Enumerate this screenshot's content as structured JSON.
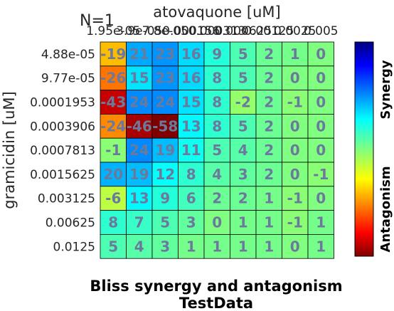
{
  "chart_data": {
    "type": "heatmap",
    "title": "Bliss synergy and antagonism",
    "subtitle": "TestData",
    "corner_label": "N=1",
    "xlabel": "atovaquone [uM]",
    "ylabel": "gramicidin [uM]",
    "x_ticks": [
      "1.95e-05",
      "3.9e-05",
      "7.8e-05",
      "0.000156",
      "0.000313",
      "0.000625",
      "0.00125",
      "0.0025",
      "0.005"
    ],
    "y_ticks": [
      "4.88e-05",
      "9.77e-05",
      "0.0001953",
      "0.0003906",
      "0.0007813",
      "0.0015625",
      "0.003125",
      "0.00625",
      "0.0125"
    ],
    "values": [
      [
        -19,
        21,
        23,
        16,
        9,
        5,
        2,
        1,
        0
      ],
      [
        -26,
        15,
        23,
        16,
        8,
        5,
        2,
        0,
        0
      ],
      [
        -43,
        24,
        24,
        15,
        8,
        -2,
        2,
        -1,
        0
      ],
      [
        -24,
        -46,
        -58,
        13,
        8,
        5,
        2,
        0,
        0
      ],
      [
        -1,
        24,
        19,
        11,
        5,
        4,
        2,
        0,
        0
      ],
      [
        20,
        19,
        12,
        8,
        4,
        3,
        2,
        0,
        -1
      ],
      [
        -6,
        13,
        9,
        6,
        2,
        2,
        1,
        -1,
        0
      ],
      [
        8,
        7,
        5,
        3,
        0,
        1,
        1,
        -1,
        1
      ],
      [
        5,
        4,
        3,
        1,
        1,
        1,
        1,
        0,
        1
      ]
    ],
    "color_range": [
      -50,
      50
    ],
    "colormap": "jet",
    "colorbar_labels": {
      "top": "Synergy",
      "bottom": "Antagonism"
    },
    "grid": true
  }
}
